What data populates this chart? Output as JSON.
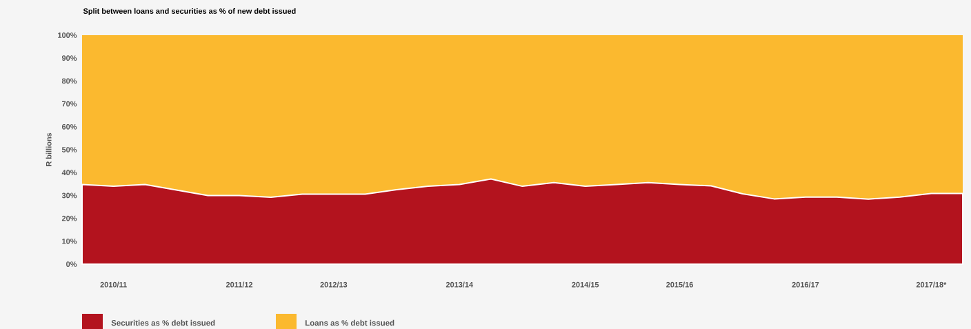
{
  "chart_data": {
    "type": "area",
    "stacked": true,
    "title": "Split between loans and securities as % of new debt issued",
    "ylabel": "R billions",
    "categories": [
      null,
      "2010/11",
      null,
      null,
      null,
      "2011/12",
      null,
      null,
      "2012/13",
      null,
      null,
      null,
      "2013/14",
      null,
      null,
      null,
      "2014/15",
      null,
      null,
      "2015/16",
      null,
      null,
      null,
      "2016/17",
      null,
      null,
      null,
      "2017/18*",
      null
    ],
    "ylim": [
      0,
      100
    ],
    "yticks": [
      {
        "value": 0,
        "label": "0%"
      },
      {
        "value": 10,
        "label": "10%"
      },
      {
        "value": 20,
        "label": "20%"
      },
      {
        "value": 30,
        "label": "30%"
      },
      {
        "value": 40,
        "label": "40%"
      },
      {
        "value": 50,
        "label": "50%"
      },
      {
        "value": 60,
        "label": "60%"
      },
      {
        "value": 70,
        "label": "70%"
      },
      {
        "value": 80,
        "label": "80%"
      },
      {
        "value": 90,
        "label": "90%"
      },
      {
        "value": 100,
        "label": "100%"
      }
    ],
    "series": [
      {
        "name": "Securities as % debt issued",
        "color": "#b3131e",
        "values": [
          34.8,
          34.0,
          34.8,
          32.4,
          30.0,
          30.0,
          29.2,
          30.6,
          30.6,
          30.6,
          32.5,
          34.0,
          34.8,
          37.2,
          34.0,
          35.6,
          34.0,
          34.8,
          35.6,
          34.8,
          34.2,
          30.7,
          28.5,
          29.3,
          29.3,
          28.4,
          29.3,
          30.9,
          30.9
        ]
      },
      {
        "name": "Loans as % debt issued",
        "color": "#fbb92f",
        "values": [
          65.2,
          66.0,
          65.2,
          67.6,
          70.0,
          70.0,
          70.8,
          69.4,
          69.4,
          69.4,
          67.5,
          66.0,
          65.2,
          62.8,
          66.0,
          64.4,
          66.0,
          65.2,
          64.4,
          65.2,
          65.8,
          69.3,
          71.5,
          70.7,
          70.7,
          71.6,
          70.7,
          69.1,
          69.1
        ]
      }
    ],
    "legend": "bottom left"
  }
}
